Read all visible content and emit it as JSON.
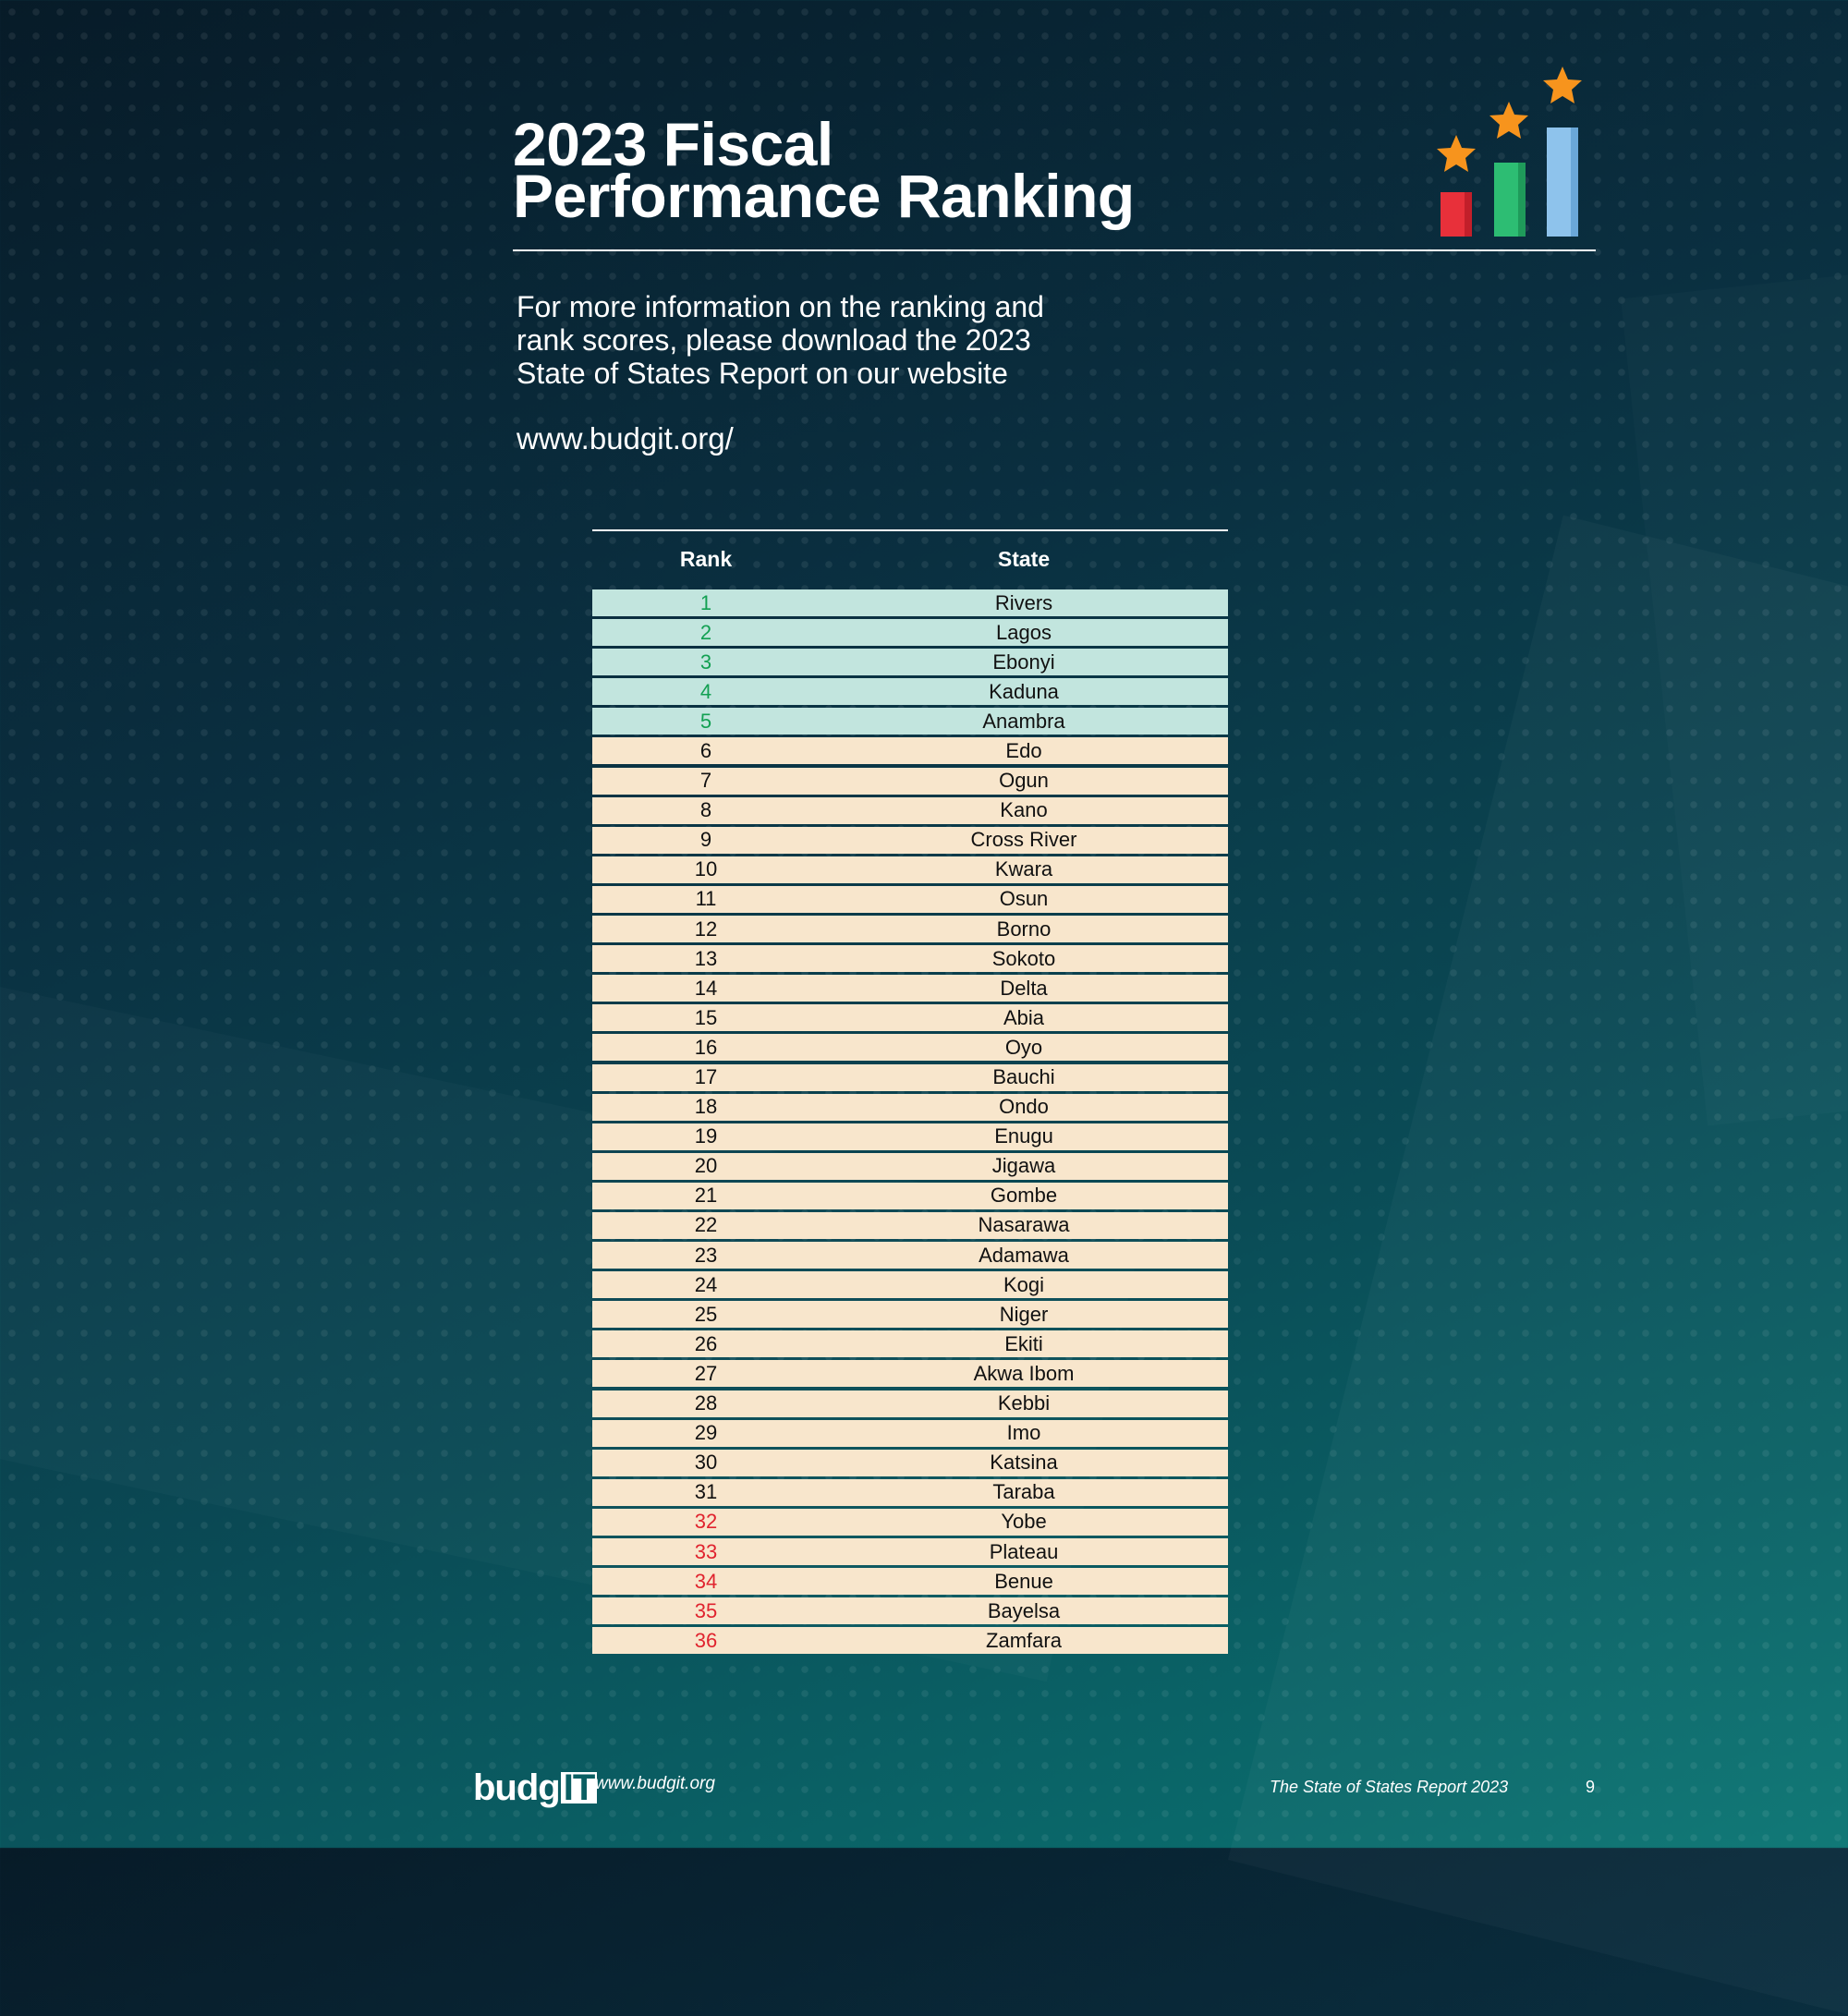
{
  "title": {
    "line1": "2023 Fiscal",
    "line2": "Performance Ranking"
  },
  "info": {
    "line1": "For more information on the ranking and",
    "line2": "rank scores, please download the 2023",
    "line3": "State of States Report on our website",
    "link": "www.budgit.org/"
  },
  "table": {
    "headers": {
      "rank": "Rank",
      "state": "State"
    },
    "rows": [
      {
        "rank": "1",
        "state": "Rivers"
      },
      {
        "rank": "2",
        "state": "Lagos"
      },
      {
        "rank": "3",
        "state": "Ebonyi"
      },
      {
        "rank": "4",
        "state": "Kaduna"
      },
      {
        "rank": "5",
        "state": "Anambra"
      },
      {
        "rank": "6",
        "state": "Edo"
      },
      {
        "rank": "7",
        "state": "Ogun"
      },
      {
        "rank": "8",
        "state": "Kano"
      },
      {
        "rank": "9",
        "state": "Cross River"
      },
      {
        "rank": "10",
        "state": "Kwara"
      },
      {
        "rank": "11",
        "state": "Osun"
      },
      {
        "rank": "12",
        "state": "Borno"
      },
      {
        "rank": "13",
        "state": "Sokoto"
      },
      {
        "rank": "14",
        "state": "Delta"
      },
      {
        "rank": "15",
        "state": "Abia"
      },
      {
        "rank": "16",
        "state": "Oyo"
      },
      {
        "rank": "17",
        "state": "Bauchi"
      },
      {
        "rank": "18",
        "state": "Ondo"
      },
      {
        "rank": "19",
        "state": "Enugu"
      },
      {
        "rank": "20",
        "state": "Jigawa"
      },
      {
        "rank": "21",
        "state": "Gombe"
      },
      {
        "rank": "22",
        "state": "Nasarawa"
      },
      {
        "rank": "23",
        "state": "Adamawa"
      },
      {
        "rank": "24",
        "state": "Kogi"
      },
      {
        "rank": "25",
        "state": "Niger"
      },
      {
        "rank": "26",
        "state": "Ekiti"
      },
      {
        "rank": "27",
        "state": "Akwa Ibom"
      },
      {
        "rank": "28",
        "state": "Kebbi"
      },
      {
        "rank": "29",
        "state": "Imo"
      },
      {
        "rank": "30",
        "state": "Katsina"
      },
      {
        "rank": "31",
        "state": "Taraba"
      },
      {
        "rank": "32",
        "state": "Yobe"
      },
      {
        "rank": "33",
        "state": "Plateau"
      },
      {
        "rank": "34",
        "state": "Benue"
      },
      {
        "rank": "35",
        "state": "Bayelsa"
      },
      {
        "rank": "36",
        "state": "Zamfara"
      }
    ]
  },
  "colors": {
    "top_rank_text": "#12a052",
    "top_row_bg": "#c2e5de",
    "bottom_rank_text": "#e0232e",
    "row_bg": "#f8e6cc",
    "icon_bar_red": "#e8303a",
    "icon_bar_green": "#2dbd73",
    "icon_bar_blue": "#8ec3ec",
    "icon_star": "#f7941d"
  },
  "icons": {
    "header_graphic": "ranking-bars-stars-icon"
  },
  "footer": {
    "logo_text": "budg",
    "logo_box_text": "IT",
    "url": "www.budgit.org",
    "report": "The State of States Report 2023",
    "page": "9"
  }
}
